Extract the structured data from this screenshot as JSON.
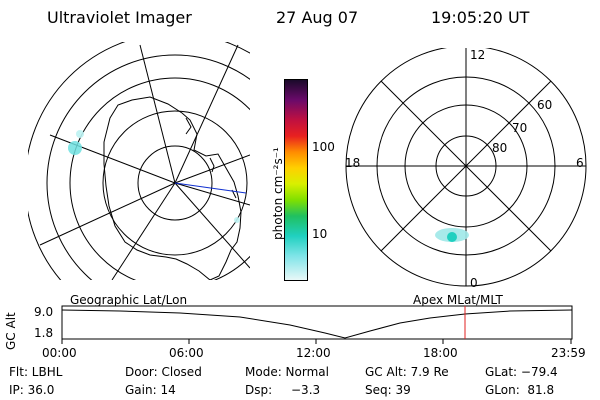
{
  "header": {
    "instrument": "Ultraviolet Imager",
    "date": "27 Aug 07",
    "time": "19:05:20 UT"
  },
  "colorbar": {
    "unit": "photon cm⁻²s⁻¹",
    "tick_100": "100",
    "tick_10": "10"
  },
  "polar_plot": {
    "mlt_12": "12",
    "mlt_18": "18",
    "mlt_6": "6",
    "mlt_0": "0",
    "lat_60": "60",
    "lat_70": "70",
    "lat_80": "80"
  },
  "timeline": {
    "left_title": "Geographic Lat/Lon",
    "right_title": "Apex MLat/MLT",
    "axis_label": "GC Alt",
    "y_top": "9.0",
    "y_bottom": "1.8",
    "x_ticks": [
      "00:00",
      "06:00",
      "12:00",
      "18:00",
      "23:59"
    ],
    "cursor_color": "#e02020"
  },
  "info": {
    "filter": "Flt: LBHL",
    "door": "Door: Closed",
    "mode": "Mode: Normal",
    "gc_alt": "GC Alt: 7.9 Re",
    "glat": "GLat: −79.4",
    "ip": "IP: 36.0",
    "gain": "Gain: 14",
    "dsp_label": "Dsp:",
    "dsp_value": "−3.3",
    "seq": "Seq: 39",
    "glon": "GLon:  81.8"
  }
}
